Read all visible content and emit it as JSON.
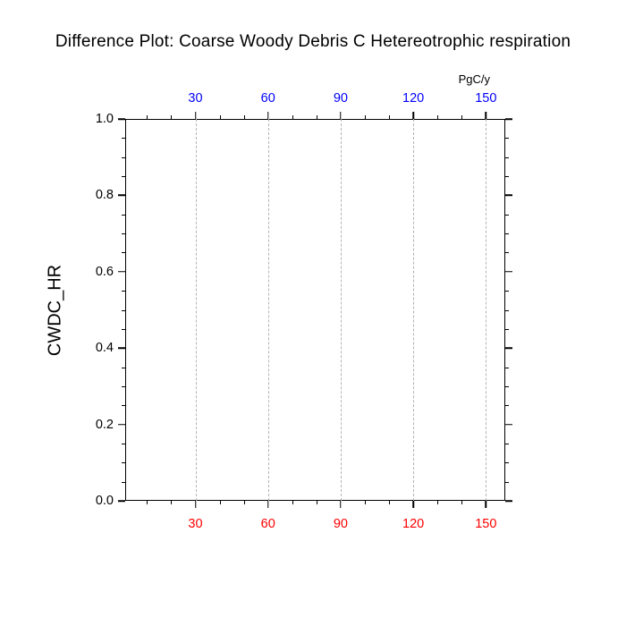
{
  "title": "Difference Plot: Coarse Woody Debris C Hetereotrophic respiration",
  "chart_data": {
    "type": "line",
    "title": "Difference Plot: Coarse Woody Debris C Hetereotrophic respiration",
    "unit_label": "PgC/y",
    "ylabel": "CWDC_HR",
    "xlabel": "",
    "xlim": [
      1,
      158
    ],
    "ylim": [
      0.0,
      1.0
    ],
    "x_major_ticks": [
      30,
      60,
      90,
      120,
      150
    ],
    "x_tick_labels": [
      "30",
      "60",
      "90",
      "120",
      "150"
    ],
    "x_minor_step": 10,
    "y_major_ticks": [
      0.0,
      0.2,
      0.4,
      0.6,
      0.8,
      1.0
    ],
    "y_tick_labels": [
      "0.0",
      "0.2",
      "0.4",
      "0.6",
      "0.8",
      "1.0"
    ],
    "y_minor_step": 0.05,
    "grid": "vertical dashed gridlines at x major ticks",
    "legend": "none",
    "series": [],
    "colors": {
      "top_axis_labels": "#0000ff",
      "bottom_axis_labels": "#ff0000",
      "left_axis_labels": "#000000",
      "title": "#000000",
      "gridline": "#b4b4b4",
      "axis": "#000000"
    }
  }
}
